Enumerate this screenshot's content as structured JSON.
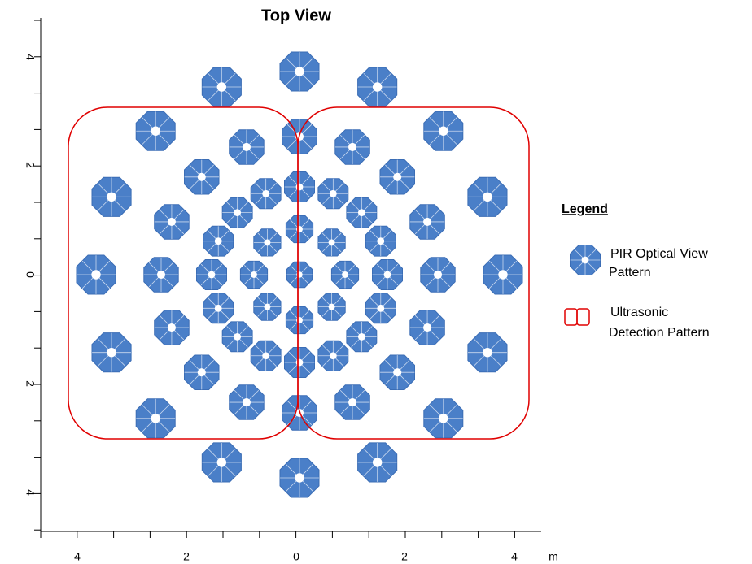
{
  "title": "Top View",
  "x_axis": {
    "tick_labels": [
      "4",
      "2",
      "0",
      "2",
      "4"
    ],
    "unit": "m"
  },
  "y_axis": {
    "tick_labels": [
      "4",
      "2",
      "0",
      "2",
      "4"
    ]
  },
  "legend": {
    "title": "Legend",
    "items": [
      {
        "lines": [
          "PIR Optical View",
          "Pattern"
        ]
      },
      {
        "lines": [
          "Ultrasonic",
          "Detection Pattern"
        ]
      }
    ]
  }
}
